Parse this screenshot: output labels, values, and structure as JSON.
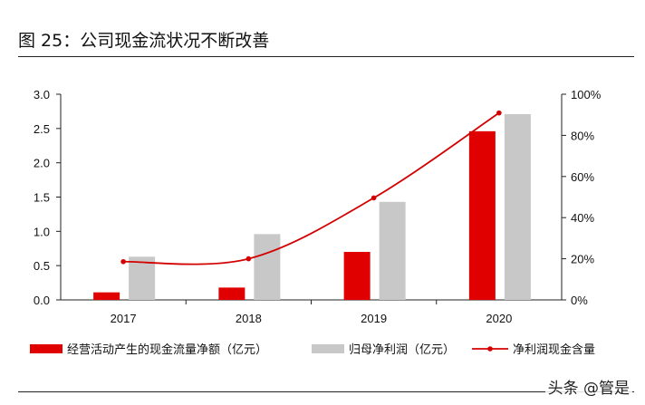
{
  "title": "图 25：公司现金流状况不断改善",
  "watermark": "头条 @管是",
  "chart_data": {
    "type": "bar",
    "title": "",
    "categories": [
      "2017",
      "2018",
      "2019",
      "2020"
    ],
    "series": [
      {
        "name": "经营活动产生的现金流量净额（亿元）",
        "type": "bar",
        "axis": "left",
        "color": "#e00000",
        "values": [
          0.11,
          0.18,
          0.7,
          2.46
        ]
      },
      {
        "name": "归母净利润（亿元）",
        "type": "bar",
        "axis": "left",
        "color": "#c8c8c8",
        "values": [
          0.63,
          0.96,
          1.43,
          2.71
        ]
      },
      {
        "name": "净利润现金含量",
        "type": "line",
        "axis": "right",
        "color": "#d40000",
        "values": [
          18.6,
          20.0,
          49.6,
          90.9
        ]
      }
    ],
    "ylim": [
      0,
      3.0
    ],
    "yticks": [
      "0.0",
      "0.5",
      "1.0",
      "1.5",
      "2.0",
      "2.5",
      "3.0"
    ],
    "y2lim": [
      0,
      100
    ],
    "y2ticks": [
      "0%",
      "20%",
      "40%",
      "60%",
      "80%",
      "100%"
    ],
    "grid": false,
    "legend": "bottom"
  }
}
